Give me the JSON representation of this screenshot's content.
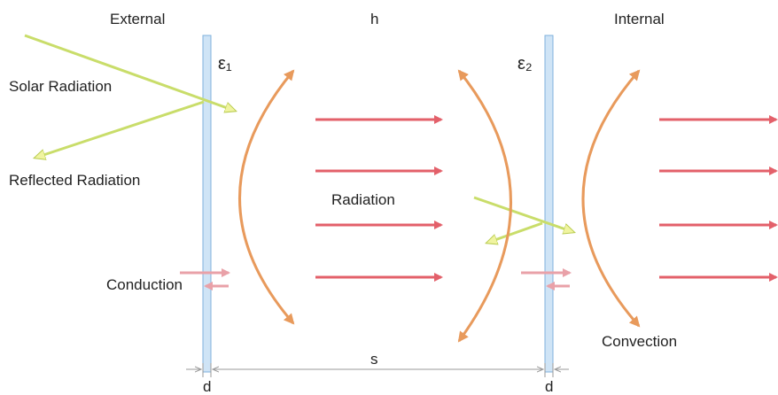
{
  "labels": {
    "external": "External",
    "h": "h",
    "internal": "Internal",
    "epsilon1": "ε₁",
    "epsilon2": "ε₂",
    "solar_radiation": "Solar Radiation",
    "reflected_radiation": "Reflected Radiation",
    "radiation": "Radiation",
    "conduction": "Conduction",
    "convection": "Convection",
    "s": "s",
    "d_left": "d",
    "d_right": "d"
  },
  "colors": {
    "pane_fill": "#cfe4f6",
    "pane_stroke": "#7fb1dc",
    "radiation_arrow": "#e3606a",
    "convection_arc": "#e89a5c",
    "solar_arrow": "#c9dd6a",
    "conduction_arrow": "#e9a1a8",
    "dimension_line": "#9a9a9a"
  }
}
